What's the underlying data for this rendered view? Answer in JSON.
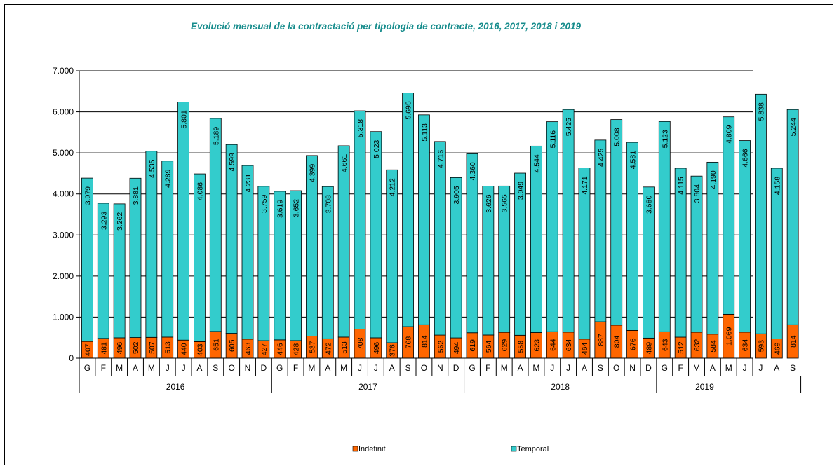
{
  "chart_data": {
    "type": "bar",
    "stacked": true,
    "title": "Evolució mensual de la contractació per tipologia de contracte, 2016, 2017, 2018 i 2019",
    "xlabel": "",
    "ylabel": "",
    "ylim": [
      0,
      7000
    ],
    "yticks": [
      "0",
      "1.000",
      "2.000",
      "3.000",
      "4.000",
      "5.000",
      "6.000",
      "7.000"
    ],
    "grid": true,
    "legend_position": "bottom",
    "years": [
      {
        "label": "2016",
        "months": [
          "G",
          "F",
          "M",
          "A",
          "M",
          "J",
          "J",
          "A",
          "S",
          "O",
          "N",
          "D"
        ]
      },
      {
        "label": "2017",
        "months": [
          "G",
          "F",
          "M",
          "A",
          "M",
          "J",
          "J",
          "A",
          "S",
          "O",
          "N",
          "D"
        ]
      },
      {
        "label": "2018",
        "months": [
          "G",
          "F",
          "M",
          "A",
          "M",
          "J",
          "J",
          "A",
          "S",
          "O",
          "N",
          "D"
        ]
      },
      {
        "label": "2019",
        "months": [
          "G",
          "F",
          "M",
          "A",
          "M",
          "J",
          "J",
          "A",
          "S"
        ]
      }
    ],
    "series": [
      {
        "name": "Indefinit",
        "color": "#ff6600",
        "values": [
          407,
          481,
          496,
          502,
          507,
          513,
          440,
          403,
          651,
          605,
          463,
          427,
          446,
          428,
          537,
          472,
          513,
          708,
          496,
          376,
          768,
          814,
          562,
          494,
          619,
          564,
          629,
          558,
          623,
          644,
          634,
          464,
          887,
          804,
          676,
          489,
          643,
          512,
          632,
          584,
          1069,
          634,
          593,
          469,
          814
        ],
        "labels": [
          "407",
          "481",
          "496",
          "502",
          "507",
          "513",
          "440",
          "403",
          "651",
          "605",
          "463",
          "427",
          "446",
          "428",
          "537",
          "472",
          "513",
          "708",
          "496",
          "376",
          "768",
          "814",
          "562",
          "494",
          "619",
          "564",
          "629",
          "558",
          "623",
          "644",
          "634",
          "464",
          "887",
          "804",
          "676",
          "489",
          "643",
          "512",
          "632",
          "584",
          "1.069",
          "634",
          "593",
          "469",
          "814"
        ]
      },
      {
        "name": "Temporal",
        "color": "#33cccc",
        "values": [
          3979,
          3293,
          3262,
          3881,
          4535,
          4289,
          5801,
          4086,
          5189,
          4599,
          4231,
          3759,
          3619,
          3652,
          4399,
          3708,
          4661,
          5318,
          5023,
          4212,
          5695,
          5113,
          4716,
          3905,
          4360,
          3626,
          3565,
          3949,
          4544,
          5116,
          5425,
          4171,
          4425,
          5008,
          4581,
          3680,
          5123,
          4115,
          3804,
          4190,
          4809,
          4666,
          5838,
          4158,
          5244
        ],
        "labels": [
          "3.979",
          "3.293",
          "3.262",
          "3.881",
          "4.535",
          "4.289",
          "5.801",
          "4.086",
          "5.189",
          "4.599",
          "4.231",
          "3.759",
          "3.619",
          "3.652",
          "4.399",
          "3.708",
          "4.661",
          "5.318",
          "5.023",
          "4.212",
          "5.695",
          "5.113",
          "4.716",
          "3.905",
          "4.360",
          "3.626",
          "3.565",
          "3.949",
          "4.544",
          "5.116",
          "5.425",
          "4.171",
          "4.425",
          "5.008",
          "4.581",
          "3.680",
          "5.123",
          "4.115",
          "3.804",
          "4.190",
          "4.809",
          "4.666",
          "5.838",
          "4.158",
          "5.244"
        ]
      }
    ]
  }
}
